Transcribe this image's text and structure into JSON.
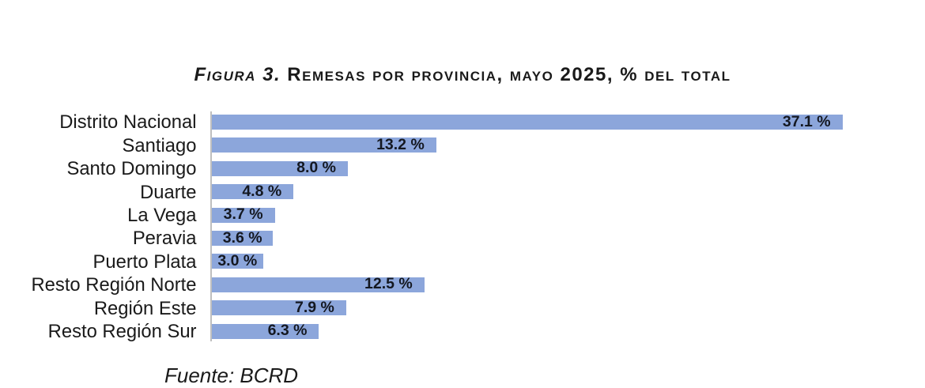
{
  "title": {
    "prefix": "Figura 3.",
    "text": " Remesas por provincia, mayo 2025, % del total"
  },
  "source": "Fuente: BCRD",
  "colors": {
    "bar": "#8CA6DB",
    "axis": "#BFBFBF",
    "text": "#1a1a1a"
  },
  "chart_data": {
    "type": "bar",
    "orientation": "horizontal",
    "title": "Figura 3. Remesas por provincia, mayo 2025, % del total",
    "xlabel": "",
    "ylabel": "",
    "xlim": [
      0,
      40
    ],
    "grid": false,
    "legend": false,
    "unit": "% del total",
    "categories": [
      "Distrito Nacional",
      "Santiago",
      "Santo Domingo",
      "Duarte",
      "La Vega",
      "Peravia",
      "Puerto Plata",
      "Resto Región Norte",
      "Región Este",
      "Resto Región Sur"
    ],
    "values": [
      37.1,
      13.2,
      8.0,
      4.8,
      3.7,
      3.6,
      3.0,
      12.5,
      7.9,
      6.3
    ],
    "value_labels": [
      "37.1 %",
      "13.2 %",
      "8.0 %",
      "4.8 %",
      "3.7 %",
      "3.6 %",
      "3.0 %",
      "12.5 %",
      "7.9 %",
      "6.3 %"
    ]
  }
}
